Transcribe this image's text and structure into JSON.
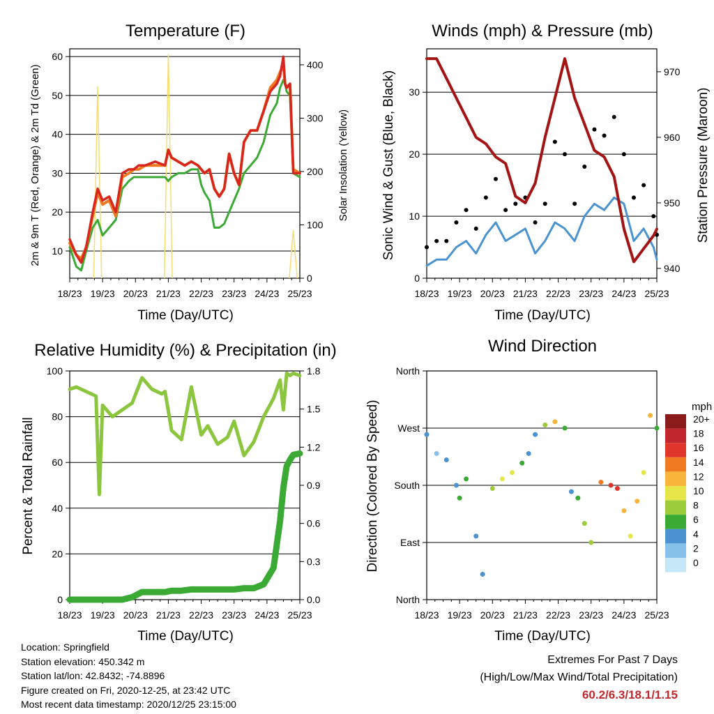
{
  "panels": {
    "temperature": {
      "title": "Temperature (F)",
      "ylabel_left": "2m & 9m T (Red, Orange) & 2m Td (Green)",
      "ylabel_right": "Solar Insolation (Yellow)",
      "xlabel": "Time (Day/UTC)"
    },
    "winds": {
      "title": "Winds (mph) & Pressure (mb)",
      "ylabel_left": "Sonic Wind & Gust (Blue, Black)",
      "ylabel_right": "Station Pressure (Maroon)",
      "xlabel": "Time (Day/UTC)"
    },
    "humidity": {
      "title": "Relative Humidity (%) & Precipitation (in)",
      "ylabel_left": "Percent & Total Rainfall",
      "xlabel": "Time (Day/UTC)"
    },
    "direction": {
      "title": "Wind Direction",
      "ylabel_left": "Direction (Colored By Speed)",
      "xlabel": "Time (Day/UTC)",
      "legend_title": "mph"
    }
  },
  "info": {
    "location": "Location: Springfield",
    "elevation": "Station elevation: 450.342 m",
    "latlon": "Station lat/lon: 42.8432; -74.8896",
    "created": "Figure created on Fri, 2020-12-25, at 23:42 UTC",
    "recent": "Most recent data timestamp: 2020/12/25 23:15:00"
  },
  "extremes": {
    "line1": "Extremes For Past 7 Days",
    "line2": "(High/Low/Max Wind/Total Precipitation)",
    "values": "60.2/6.3/18.1/1.15"
  },
  "colors": {
    "temp_2m": "#d7261e",
    "temp_9m": "#f07a22",
    "dewpoint": "#3aaa35",
    "solar": "#f7dc6f",
    "wind": "#4b92d1",
    "gust": "#000000",
    "pressure": "#a31515",
    "rh": "#8cc63f",
    "precip": "#3aaa35"
  },
  "chart_data": [
    {
      "type": "line",
      "title": "Temperature (F)",
      "x_ticks": [
        "18/23",
        "19/23",
        "20/23",
        "21/23",
        "22/23",
        "23/23",
        "24/23",
        "25/23"
      ],
      "ylim": [
        3,
        62
      ],
      "yticks": [
        10,
        20,
        30,
        40,
        50,
        60
      ],
      "y2lim": [
        0,
        430
      ],
      "y2ticks": [
        0,
        100,
        200,
        300,
        400
      ],
      "x": [
        0,
        0.2,
        0.35,
        0.5,
        0.7,
        0.85,
        1.0,
        1.2,
        1.4,
        1.6,
        1.8,
        1.95,
        2.1,
        2.3,
        2.6,
        2.9,
        3.0,
        3.1,
        3.3,
        3.5,
        3.7,
        3.9,
        4.0,
        4.1,
        4.25,
        4.4,
        4.55,
        4.7,
        4.85,
        5.0,
        5.15,
        5.3,
        5.5,
        5.7,
        5.9,
        6.1,
        6.3,
        6.4,
        6.5,
        6.55,
        6.6,
        6.7,
        6.8,
        7.0
      ],
      "series": [
        {
          "name": "2m T",
          "axis": "left",
          "values": [
            13,
            9,
            7,
            11,
            20,
            26,
            23,
            24,
            20,
            30,
            31,
            31,
            32,
            32,
            33,
            32,
            36,
            34,
            33,
            32,
            33,
            32,
            31,
            30,
            31,
            26,
            24,
            26,
            35,
            30,
            27,
            38,
            41,
            41,
            46,
            51,
            53,
            55,
            60,
            53,
            52,
            53,
            30,
            30
          ]
        },
        {
          "name": "9m T",
          "axis": "left",
          "values": [
            12,
            9,
            8,
            11,
            19,
            25,
            22,
            23,
            19,
            29,
            30,
            31,
            31,
            32,
            32,
            32,
            36,
            34,
            33,
            32,
            33,
            32,
            31,
            30,
            31,
            26,
            24,
            26,
            35,
            30,
            27,
            38,
            41,
            41,
            46,
            52,
            54,
            56,
            58,
            53,
            52,
            53,
            31,
            30
          ]
        },
        {
          "name": "2m Td",
          "axis": "left",
          "values": [
            11,
            6,
            5,
            10,
            16,
            18,
            14,
            16,
            18,
            26,
            28,
            29,
            29,
            29,
            29,
            29,
            28,
            29,
            30,
            30,
            31,
            31,
            27,
            25,
            23,
            16,
            16,
            17,
            20,
            23,
            26,
            30,
            32,
            34,
            38,
            45,
            48,
            52,
            54,
            53,
            51,
            50,
            30,
            29
          ]
        },
        {
          "name": "Solar Insolation",
          "axis": "right",
          "values": [
            0,
            0,
            0,
            0,
            0,
            360,
            0,
            0,
            0,
            0,
            0,
            0,
            0,
            0,
            0,
            0,
            420,
            0,
            0,
            0,
            0,
            0,
            0,
            0,
            0,
            0,
            0,
            0,
            0,
            0,
            0,
            0,
            0,
            0,
            0,
            0,
            0,
            0,
            0,
            0,
            0,
            0,
            90,
            0
          ]
        }
      ]
    },
    {
      "type": "line",
      "title": "Winds (mph) & Pressure (mb)",
      "x_ticks": [
        "18/23",
        "19/23",
        "20/23",
        "21/23",
        "22/23",
        "23/23",
        "24/23",
        "25/23"
      ],
      "ylim": [
        0,
        37
      ],
      "yticks": [
        0,
        10,
        20,
        30
      ],
      "y2lim": [
        938.5,
        973.5
      ],
      "y2ticks": [
        940,
        950,
        960,
        970
      ],
      "x": [
        0,
        0.3,
        0.6,
        0.9,
        1.2,
        1.5,
        1.8,
        2.1,
        2.4,
        2.7,
        3.0,
        3.3,
        3.6,
        3.9,
        4.2,
        4.5,
        4.8,
        5.1,
        5.4,
        5.7,
        6.0,
        6.3,
        6.6,
        6.9,
        7.0
      ],
      "series": [
        {
          "name": "Sonic Wind",
          "axis": "left",
          "values": [
            2,
            3,
            3,
            5,
            6,
            4,
            7,
            9,
            6,
            7,
            8,
            4,
            6,
            9,
            8,
            6,
            10,
            12,
            11,
            13,
            12,
            6,
            8,
            5,
            3
          ]
        },
        {
          "name": "Gust",
          "axis": "left",
          "values": [
            5,
            6,
            6,
            9,
            11,
            8,
            13,
            16,
            11,
            12,
            13,
            9,
            12,
            22,
            20,
            12,
            18,
            24,
            23,
            26,
            20,
            13,
            15,
            10,
            7
          ]
        },
        {
          "name": "Station Pressure",
          "axis": "right",
          "values": [
            972,
            972,
            969,
            966,
            963,
            960,
            959,
            957,
            956,
            951,
            950,
            953,
            960,
            966,
            972,
            966,
            962,
            958,
            957,
            954,
            946,
            941,
            943,
            945,
            946
          ]
        }
      ]
    },
    {
      "type": "line",
      "title": "Relative Humidity (%) & Precipitation (in)",
      "x_ticks": [
        "18/23",
        "19/23",
        "20/23",
        "21/23",
        "22/23",
        "23/23",
        "24/23",
        "25/23"
      ],
      "ylim": [
        0,
        100
      ],
      "yticks": [
        0,
        20,
        40,
        60,
        80,
        100
      ],
      "y2lim": [
        0,
        1.8
      ],
      "y2ticks": [
        0.0,
        0.3,
        0.6,
        0.9,
        1.2,
        1.5,
        1.8
      ],
      "x": [
        0,
        0.2,
        0.5,
        0.8,
        0.9,
        1.0,
        1.3,
        1.6,
        1.9,
        2.2,
        2.5,
        2.8,
        2.9,
        3.1,
        3.4,
        3.7,
        4.0,
        4.2,
        4.5,
        4.8,
        5.0,
        5.3,
        5.6,
        5.9,
        6.2,
        6.4,
        6.5,
        6.6,
        6.7,
        6.8,
        7.0
      ],
      "series": [
        {
          "name": "Relative Humidity",
          "axis": "left",
          "values": [
            92,
            93,
            91,
            89,
            46,
            85,
            80,
            83,
            86,
            97,
            92,
            90,
            91,
            74,
            70,
            93,
            72,
            76,
            68,
            71,
            78,
            63,
            69,
            80,
            88,
            96,
            83,
            99,
            98,
            99,
            98
          ]
        },
        {
          "name": "Total Precipitation",
          "axis": "right",
          "values": [
            0,
            0,
            0,
            0,
            0,
            0,
            0,
            0,
            0.02,
            0.06,
            0.06,
            0.06,
            0.06,
            0.07,
            0.07,
            0.08,
            0.08,
            0.08,
            0.08,
            0.08,
            0.08,
            0.09,
            0.09,
            0.12,
            0.25,
            0.62,
            0.88,
            1.05,
            1.1,
            1.14,
            1.15
          ]
        }
      ]
    },
    {
      "type": "scatter",
      "title": "Wind Direction",
      "x_ticks": [
        "18/23",
        "19/23",
        "20/23",
        "21/23",
        "22/23",
        "23/23",
        "24/23",
        "25/23"
      ],
      "ylim": [
        0,
        360
      ],
      "yticks": [
        "North",
        "East",
        "South",
        "West",
        "North"
      ],
      "ytick_values": [
        0,
        90,
        180,
        270,
        360
      ],
      "color_scale": {
        "title": "mph",
        "labels": [
          "0",
          "2",
          "4",
          "6",
          "8",
          "10",
          "12",
          "14",
          "16",
          "18",
          "20+"
        ]
      },
      "x": [
        0,
        0.3,
        0.6,
        0.9,
        1.0,
        1.2,
        1.5,
        1.7,
        2.0,
        2.3,
        2.6,
        2.9,
        3.1,
        3.3,
        3.6,
        3.9,
        4.2,
        4.4,
        4.6,
        4.8,
        5.0,
        5.3,
        5.6,
        5.8,
        6.0,
        6.2,
        6.4,
        6.6,
        6.8,
        7.0
      ],
      "directions": [
        260,
        230,
        220,
        180,
        160,
        190,
        100,
        40,
        175,
        190,
        200,
        215,
        230,
        260,
        275,
        280,
        270,
        170,
        160,
        120,
        90,
        185,
        180,
        175,
        140,
        100,
        155,
        200,
        290,
        270
      ],
      "speeds": [
        3,
        2,
        3,
        4,
        5,
        6,
        4,
        3,
        8,
        9,
        9,
        5,
        4,
        3,
        7,
        11,
        5,
        4,
        6,
        7,
        8,
        14,
        16,
        15,
        11,
        10,
        12,
        9,
        12,
        6
      ]
    }
  ]
}
